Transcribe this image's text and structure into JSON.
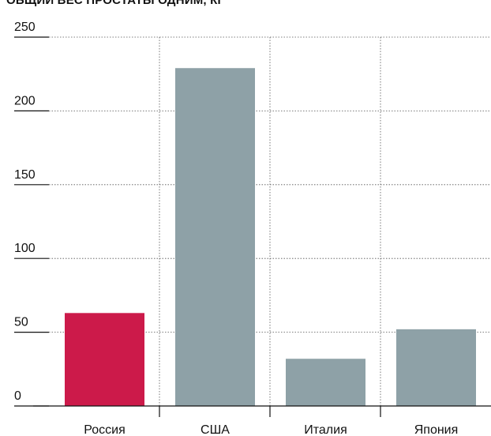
{
  "title": "ОБЩИЙ ВЕС ПРОСТАТЫ ОДНИМ, КГ",
  "chart_data": {
    "type": "bar",
    "title": "ОБЩИЙ ВЕС ПРОСТАТЫ ОДНИМ, КГ",
    "xlabel": "",
    "ylabel": "",
    "categories": [
      "Россия",
      "США",
      "Италия",
      "Япония"
    ],
    "values": [
      63,
      229,
      32,
      52
    ],
    "bar_colors": [
      "#cc1a4a",
      "#8ea1a7",
      "#8ea1a7",
      "#8ea1a7"
    ],
    "ylim": [
      0,
      250
    ],
    "yticks": [
      0,
      50,
      100,
      150,
      200,
      250
    ],
    "grid": true
  }
}
